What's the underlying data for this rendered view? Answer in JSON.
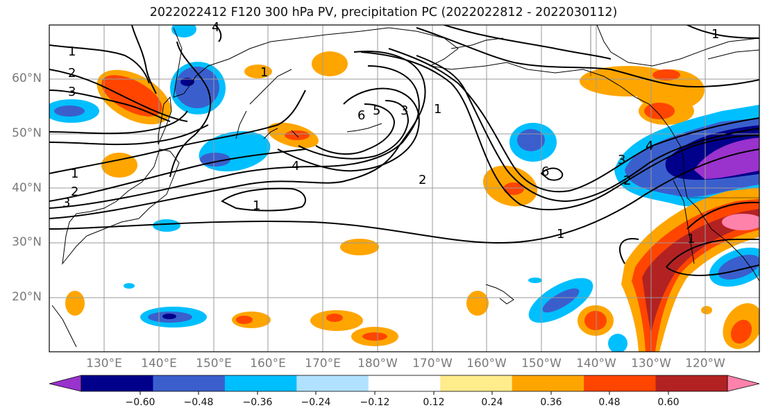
{
  "title": "2022022412 F120 300 hPa PV, precipitation PC (2022022812 - 2022030112)",
  "lat_labels": [
    "60°N",
    "50°N",
    "40°N",
    "30°N",
    "20°N"
  ],
  "lon_labels": [
    "130°E",
    "140°E",
    "150°E",
    "160°E",
    "170°E",
    "180°W",
    "170°W",
    "160°W",
    "150°W",
    "140°W",
    "130°W",
    "120°W"
  ],
  "pv_contour_labels": [
    "1",
    "2",
    "3",
    "1",
    "2",
    "3",
    "4",
    "1",
    "4",
    "6",
    "5",
    "3",
    "1",
    "2",
    "6",
    "4",
    "3",
    "2",
    "1",
    "1",
    "1",
    "1"
  ],
  "colorbar": {
    "tick_labels": [
      "−0.60",
      "−0.48",
      "−0.36",
      "−0.24",
      "−0.12",
      "0.12",
      "0.24",
      "0.36",
      "0.48",
      "0.60"
    ],
    "colors": [
      "#9a32cd",
      "#00008b",
      "#3a5fcd",
      "#00bfff",
      "#b0e2ff",
      "#ffffff",
      "#ffec8b",
      "#ffa500",
      "#ff4500",
      "#b22222",
      "#ff82ab"
    ]
  }
}
